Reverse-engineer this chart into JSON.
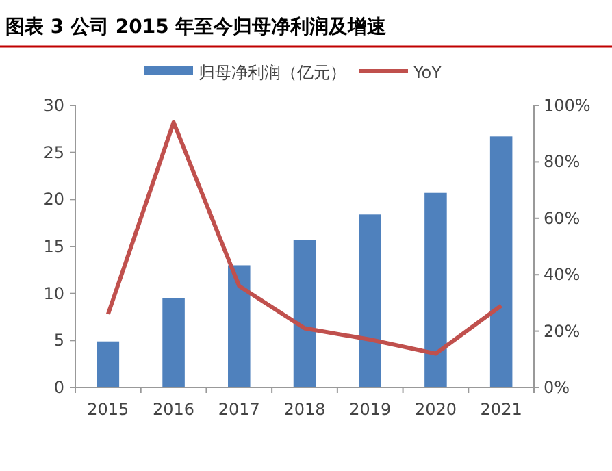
{
  "chart_data": {
    "type": "bar",
    "title": "图表 3  公司 2015 年至今归母净利润及增速",
    "categories": [
      "2015",
      "2016",
      "2017",
      "2018",
      "2019",
      "2020",
      "2021"
    ],
    "series": [
      {
        "name": "归母净利润（亿元）",
        "color": "#4f81bd",
        "values": [
          4.9,
          9.5,
          13.0,
          15.7,
          18.4,
          20.7,
          26.7
        ]
      },
      {
        "name": "YoY",
        "type": "line",
        "axis": "y2",
        "color": "#c0504d",
        "values": [
          26,
          94,
          36,
          21,
          17,
          12,
          29
        ]
      }
    ],
    "ylim": [
      0,
      30
    ],
    "yticks": [
      0,
      5,
      10,
      15,
      20,
      25,
      30
    ],
    "y2lim": [
      0,
      100
    ],
    "y2ticks": [
      {
        "value": 0,
        "label": "0%"
      },
      {
        "value": 20,
        "label": "20%"
      },
      {
        "value": 40,
        "label": "40%"
      },
      {
        "value": 60,
        "label": "60%"
      },
      {
        "value": 80,
        "label": "80%"
      },
      {
        "value": 100,
        "label": "100%"
      }
    ],
    "legend": "top",
    "grid": false
  }
}
